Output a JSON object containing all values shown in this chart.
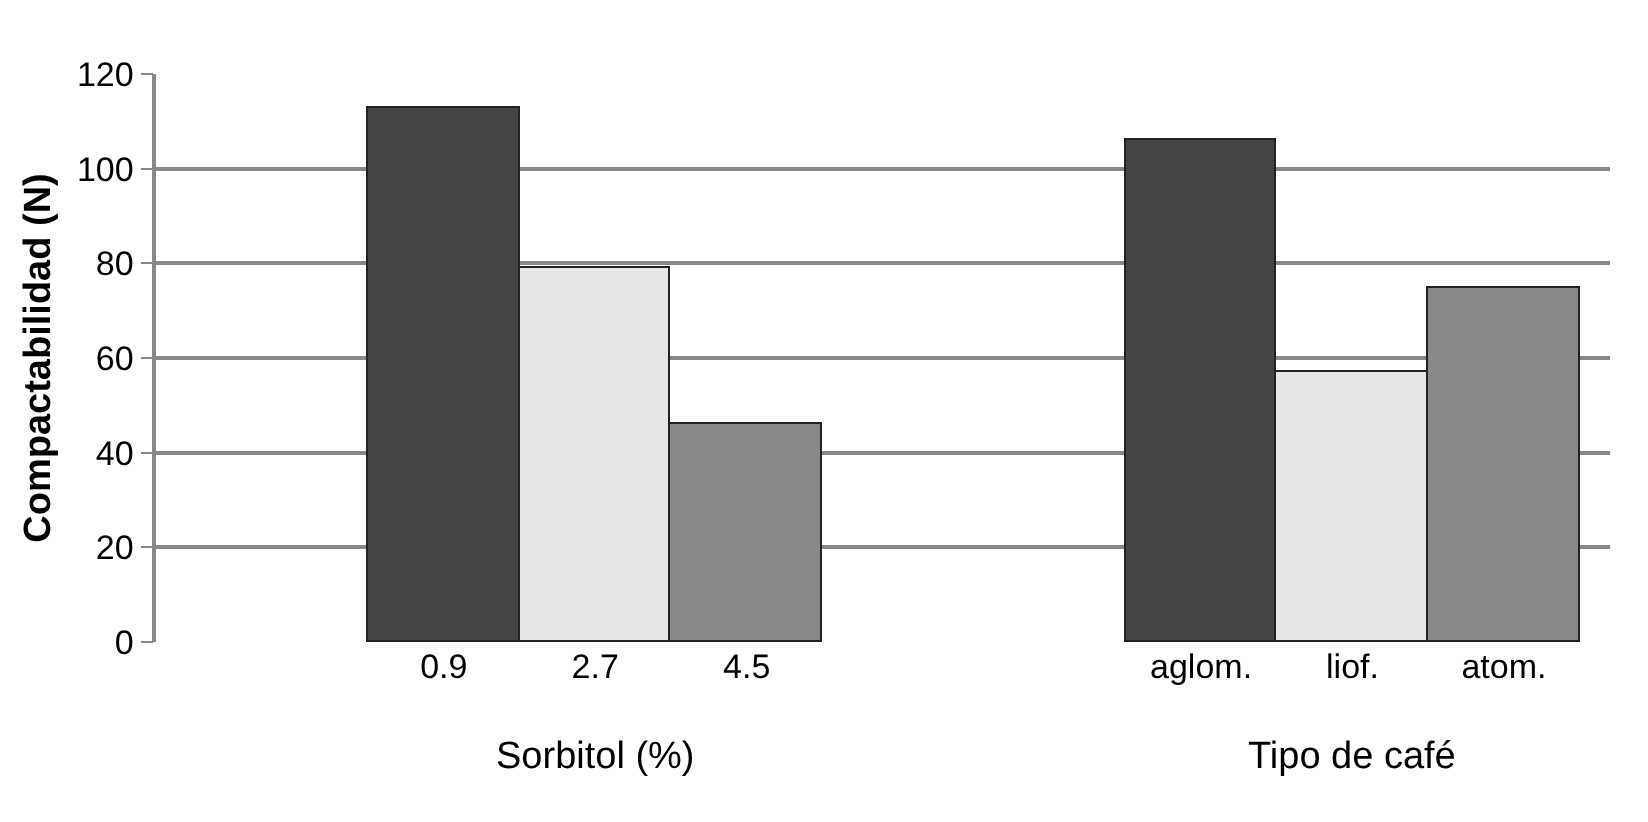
{
  "chart_data": {
    "type": "bar",
    "ylabel": "Compactabilidad (N)",
    "categories": [
      "0.9",
      "2.7",
      "4.5",
      null,
      null,
      "aglom.",
      "liof.",
      "atom."
    ],
    "values": [
      113,
      79,
      46,
      null,
      null,
      106,
      57,
      75
    ],
    "colors": [
      "#444444",
      "#e6e6e6",
      "#888888",
      "#ffffff",
      "#ffffff",
      "#444444",
      "#e6e6e6",
      "#888888"
    ],
    "ylim": [
      0,
      120
    ],
    "yticks": [
      0,
      20,
      40,
      60,
      80,
      100,
      120
    ],
    "grid": "y",
    "annotations": [
      "Sorbitol (%)",
      "Tipo de café"
    ]
  }
}
